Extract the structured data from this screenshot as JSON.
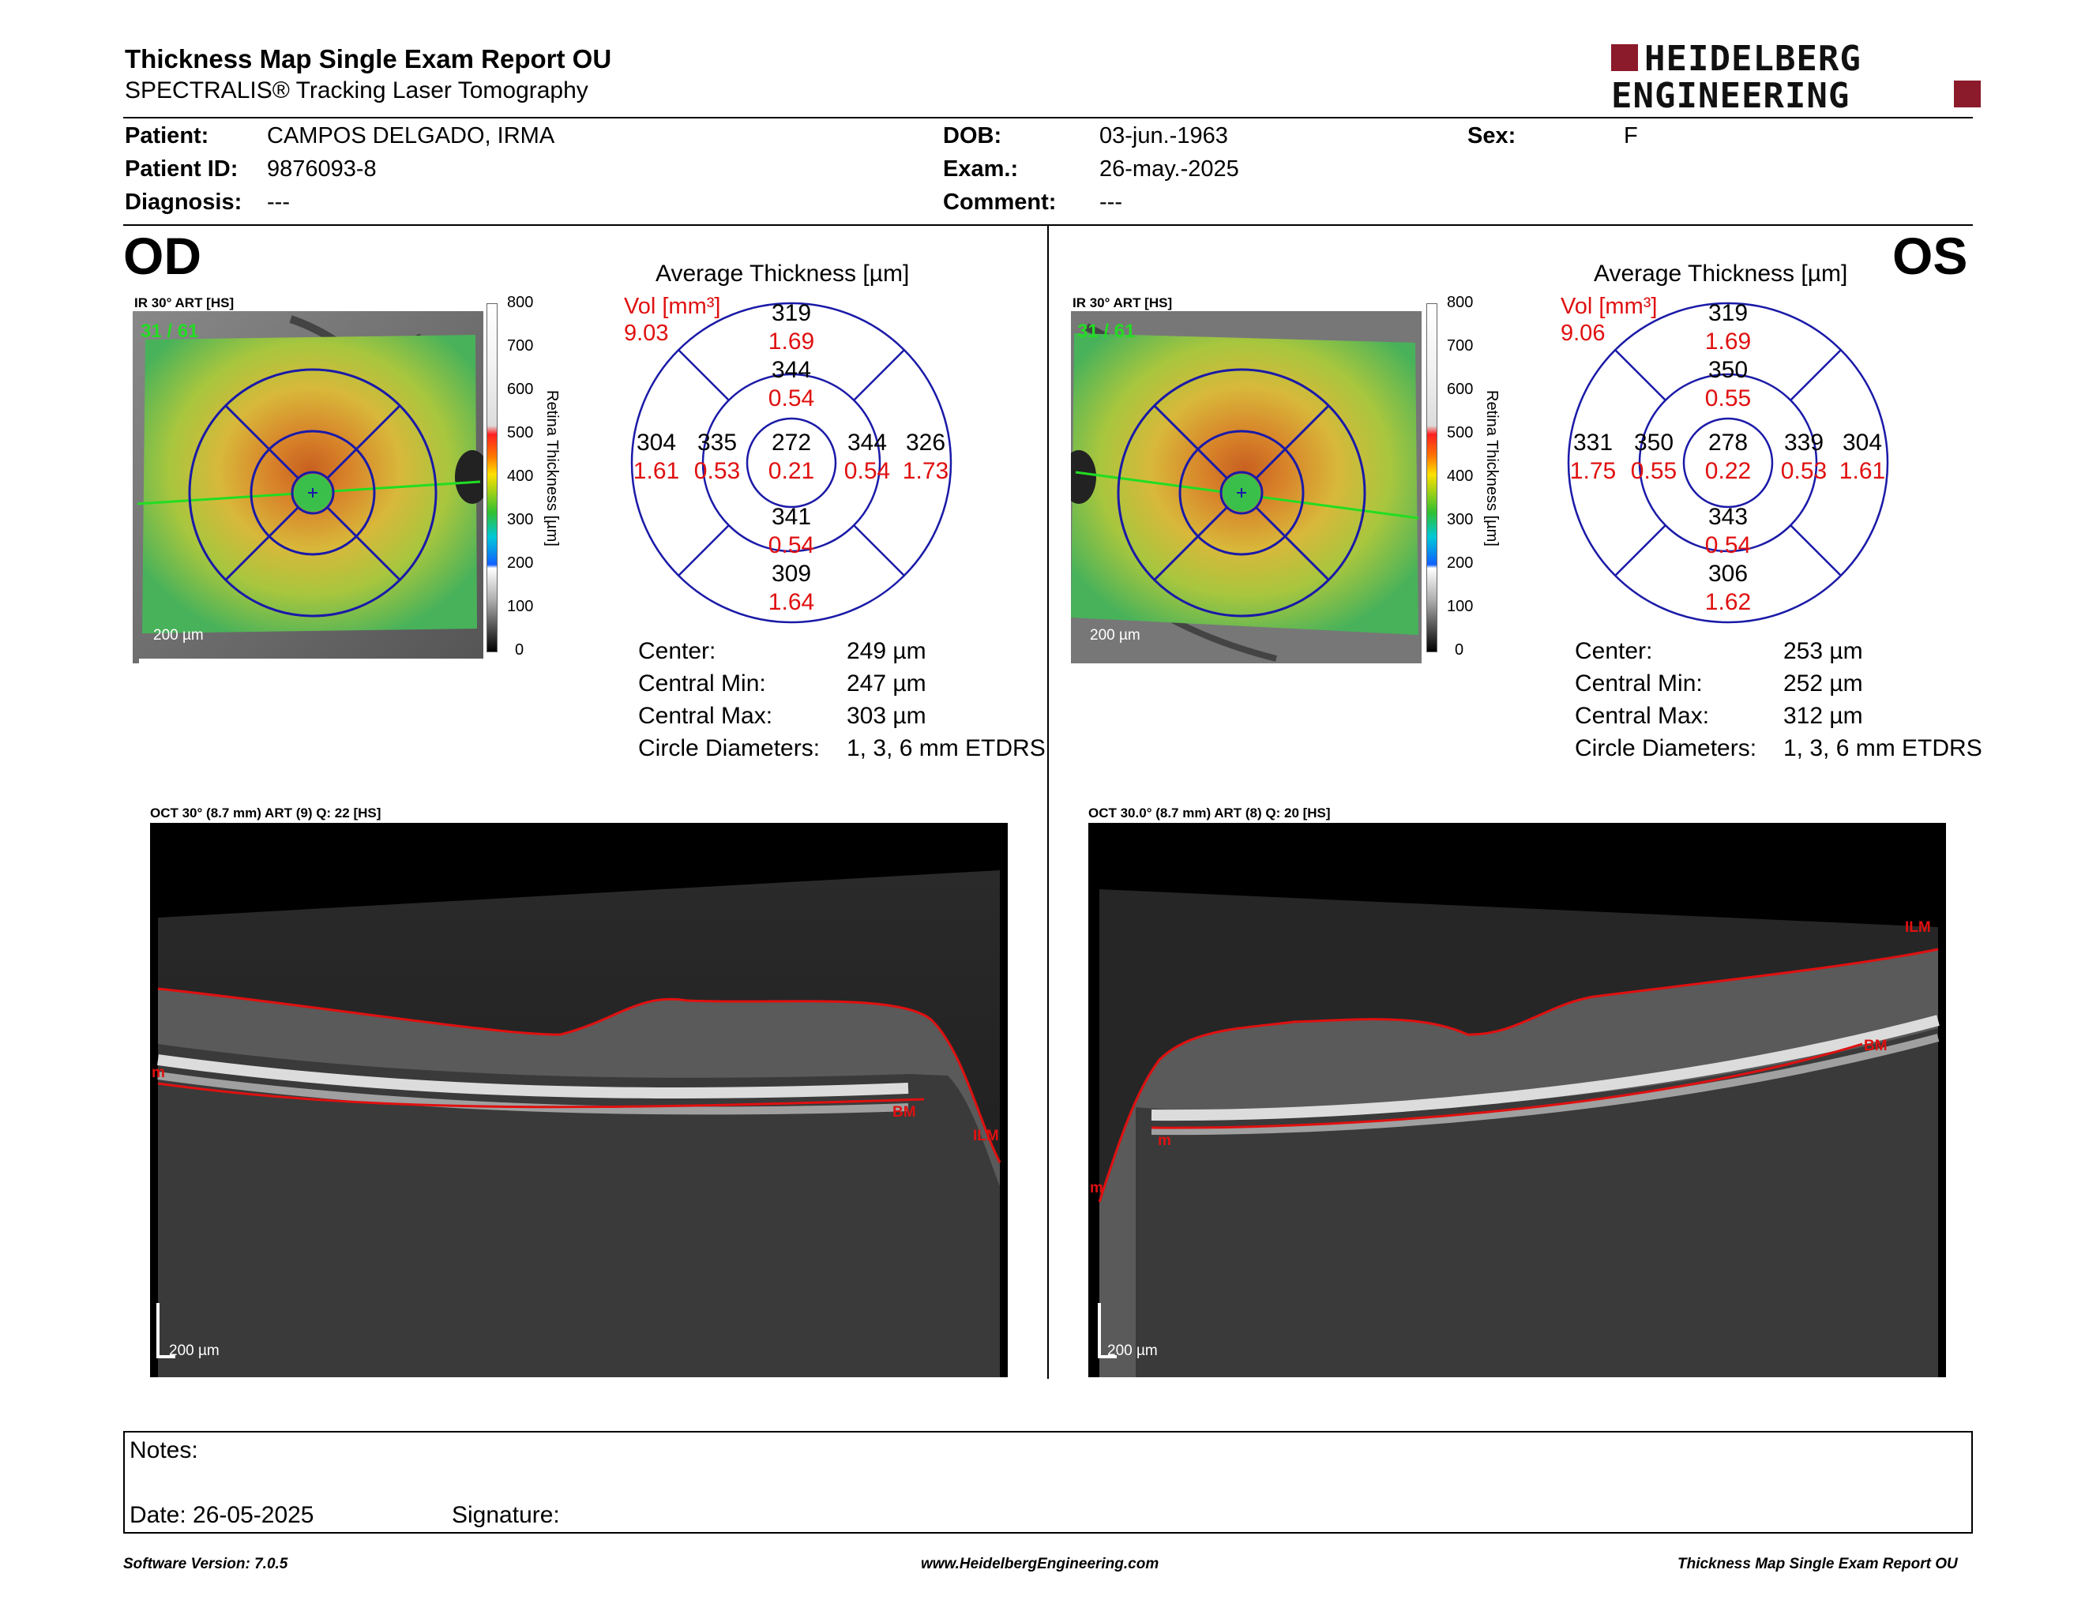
{
  "header": {
    "title": "Thickness Map Single Exam Report OU",
    "subtitle": "SPECTRALIS® Tracking Laser Tomography",
    "logo_line1": "HEIDELBERG",
    "logo_line2": "ENGINEERING",
    "brand_color": "#8b1a2b"
  },
  "patient": {
    "patient_label": "Patient:",
    "patient_value": "CAMPOS DELGADO, IRMA",
    "id_label": "Patient ID:",
    "id_value": "9876093-8",
    "diagnosis_label": "Diagnosis:",
    "diagnosis_value": "---",
    "dob_label": "DOB:",
    "dob_value": "03-jun.-1963",
    "exam_label": "Exam.:",
    "exam_value": "26-may.-2025",
    "comment_label": "Comment:",
    "comment_value": "---",
    "sex_label": "Sex:",
    "sex_value": "F"
  },
  "colorbar": {
    "ticks": [
      "800",
      "700",
      "600",
      "500",
      "400",
      "300",
      "200",
      "100",
      "0"
    ],
    "title": "Retina Thickness [µm]"
  },
  "od": {
    "tag": "OD",
    "ir_caption": "IR 30° ART [HS]",
    "frame_counter": "31 / 61",
    "ir_scale": "200 µm",
    "avg_title": "Average Thickness [µm]",
    "vol_label": "Vol [mm³]",
    "vol_total": "9.03",
    "sectors": {
      "outer_superior": {
        "t": "319",
        "v": "1.69"
      },
      "inner_superior": {
        "t": "344",
        "v": "0.54"
      },
      "outer_temporal_left": {
        "t": "304",
        "v": "1.61"
      },
      "inner_left": {
        "t": "335",
        "v": "0.53"
      },
      "center": {
        "t": "272",
        "v": "0.21"
      },
      "inner_right": {
        "t": "344",
        "v": "0.54"
      },
      "outer_right": {
        "t": "326",
        "v": "1.73"
      },
      "inner_inferior": {
        "t": "341",
        "v": "0.54"
      },
      "outer_inferior": {
        "t": "309",
        "v": "1.64"
      }
    },
    "stats": [
      {
        "label": "Center:",
        "value": "249 µm"
      },
      {
        "label": "Central Min:",
        "value": "247 µm"
      },
      {
        "label": "Central Max:",
        "value": "303 µm"
      },
      {
        "label": "Circle Diameters:",
        "value": "1, 3, 6 mm ETDRS"
      }
    ],
    "oct_caption": "OCT 30° (8.7 mm) ART (9) Q: 22 [HS]",
    "oct_scale": "200 µm",
    "oct_labels": {
      "bm": "BM",
      "ilm": "ILM",
      "m": "m"
    }
  },
  "os": {
    "tag": "OS",
    "ir_caption": "IR 30° ART [HS]",
    "frame_counter": "31 / 61",
    "ir_scale": "200 µm",
    "avg_title": "Average Thickness [µm]",
    "vol_label": "Vol [mm³]",
    "vol_total": "9.06",
    "sectors": {
      "outer_superior": {
        "t": "319",
        "v": "1.69"
      },
      "inner_superior": {
        "t": "350",
        "v": "0.55"
      },
      "outer_temporal_left": {
        "t": "331",
        "v": "1.75"
      },
      "inner_left": {
        "t": "350",
        "v": "0.55"
      },
      "center": {
        "t": "278",
        "v": "0.22"
      },
      "inner_right": {
        "t": "339",
        "v": "0.53"
      },
      "outer_right": {
        "t": "304",
        "v": "1.61"
      },
      "inner_inferior": {
        "t": "343",
        "v": "0.54"
      },
      "outer_inferior": {
        "t": "306",
        "v": "1.62"
      }
    },
    "stats": [
      {
        "label": "Center:",
        "value": "253 µm"
      },
      {
        "label": "Central Min:",
        "value": "252 µm"
      },
      {
        "label": "Central Max:",
        "value": "312 µm"
      },
      {
        "label": "Circle Diameters:",
        "value": "1, 3, 6 mm ETDRS"
      }
    ],
    "oct_caption": "OCT 30.0° (8.7 mm) ART (8) Q: 20 [HS]",
    "oct_scale": "200 µm",
    "oct_labels": {
      "ilm": "ILM",
      "bm": "BM",
      "m1": "m",
      "m2": "m"
    }
  },
  "notes": {
    "notes_label": "Notes:",
    "date_label": "Date: 26-05-2025",
    "signature_label": "Signature:"
  },
  "footer": {
    "software": "Software Version: 7.0.5",
    "website": "www.HeidelbergEngineering.com",
    "report_name": "Thickness Map Single Exam Report OU"
  }
}
